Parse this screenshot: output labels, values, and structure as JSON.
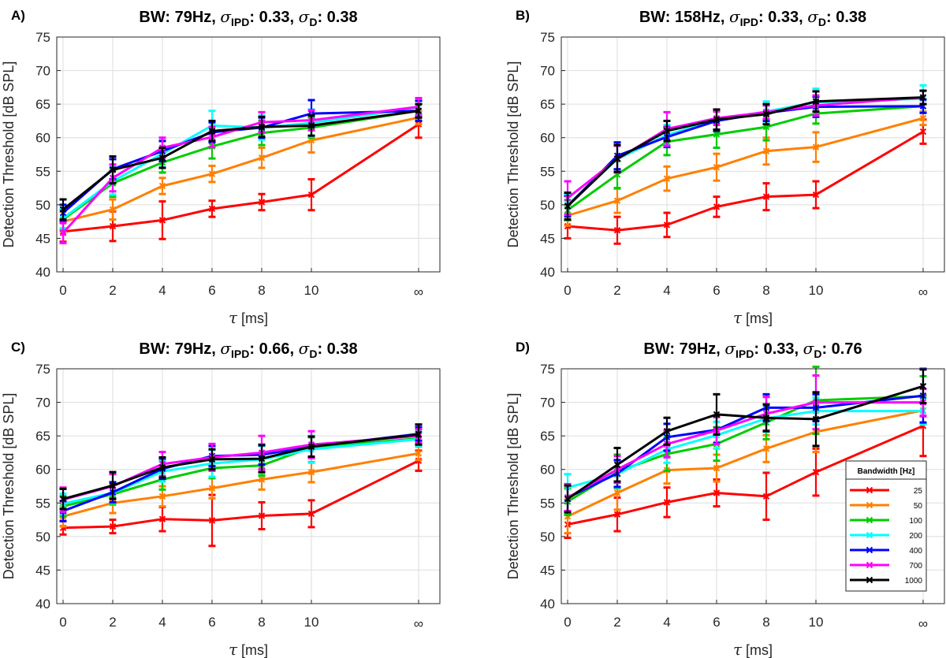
{
  "figure": {
    "legend": {
      "title": "Bandwidth [Hz]",
      "location": "bottom-right of panel D"
    }
  },
  "chart_data": [
    {
      "type": "line",
      "panel": "A)",
      "title": {
        "prefix": "BW: 79Hz, ",
        "sigma1_sub": "IPD",
        "sigma1_val": ": 0.33, ",
        "sigma2_sub": "D",
        "sigma2_val": ": 0.38"
      },
      "xlabel": "[ms]",
      "xlabel_symbol": "τ",
      "ylabel": "Detection Threshold [dB SPL]",
      "ylim": [
        40,
        75
      ],
      "yticks": [
        "40",
        "45",
        "50",
        "55",
        "60",
        "65",
        "70",
        "75"
      ],
      "xtick_labels": [
        "0",
        "2",
        "4",
        "6",
        "8",
        "10",
        "∞"
      ],
      "grid": true,
      "series": [
        {
          "name": "25",
          "color": "#ff0000",
          "values": [
            46.0,
            46.8,
            47.7,
            49.4,
            50.4,
            51.5,
            62.0
          ],
          "errors": [
            1.5,
            2.2,
            2.8,
            1.2,
            1.2,
            2.3,
            2.0
          ]
        },
        {
          "name": "50",
          "color": "#ff8000",
          "values": [
            47.5,
            49.3,
            52.8,
            54.6,
            57.0,
            59.6,
            63.0
          ],
          "errors": [
            1.5,
            1.5,
            1.2,
            1.2,
            1.5,
            1.8,
            1.0
          ]
        },
        {
          "name": "100",
          "color": "#00cc00",
          "values": [
            47.8,
            53.2,
            56.3,
            58.7,
            60.7,
            61.5,
            64.0
          ],
          "errors": [
            1.5,
            2.0,
            1.5,
            1.8,
            1.8,
            1.5,
            1.0
          ]
        },
        {
          "name": "200",
          "color": "#00ffff",
          "values": [
            48.0,
            53.5,
            57.6,
            61.8,
            61.5,
            62.2,
            64.5
          ],
          "errors": [
            1.5,
            2.0,
            2.0,
            2.2,
            1.8,
            2.0,
            1.0
          ]
        },
        {
          "name": "400",
          "color": "#0000ff",
          "values": [
            48.8,
            55.3,
            58.0,
            60.8,
            61.5,
            63.6,
            64.0
          ],
          "errors": [
            1.2,
            1.5,
            1.5,
            1.5,
            1.5,
            2.0,
            1.5
          ]
        },
        {
          "name": "700",
          "color": "#ff00ff",
          "values": [
            45.8,
            54.0,
            58.5,
            60.1,
            62.3,
            62.6,
            64.6
          ],
          "errors": [
            1.5,
            2.0,
            1.5,
            1.5,
            1.5,
            1.5,
            1.3
          ]
        },
        {
          "name": "1000",
          "color": "#000000",
          "values": [
            49.3,
            55.2,
            57.0,
            61.0,
            61.6,
            61.8,
            64.0
          ],
          "errors": [
            1.5,
            2.0,
            1.5,
            1.5,
            1.5,
            1.5,
            1.0
          ]
        }
      ]
    },
    {
      "type": "line",
      "panel": "B)",
      "title": {
        "prefix": "BW: 158Hz, ",
        "sigma1_sub": "IPD",
        "sigma1_val": ": 0.33, ",
        "sigma2_sub": "D",
        "sigma2_val": ": 0.38"
      },
      "xlabel": "[ms]",
      "xlabel_symbol": "τ",
      "ylabel": "Detection Threshold [dB SPL]",
      "ylim": [
        40,
        75
      ],
      "yticks": [
        "40",
        "45",
        "50",
        "55",
        "60",
        "65",
        "70",
        "75"
      ],
      "xtick_labels": [
        "0",
        "2",
        "4",
        "6",
        "8",
        "10",
        "∞"
      ],
      "grid": true,
      "series": [
        {
          "name": "25",
          "color": "#ff0000",
          "values": [
            46.8,
            46.2,
            47.0,
            49.7,
            51.2,
            51.5,
            60.9
          ],
          "errors": [
            1.8,
            2.0,
            1.8,
            1.5,
            2.0,
            2.0,
            1.8
          ]
        },
        {
          "name": "50",
          "color": "#ff8000",
          "values": [
            48.4,
            50.6,
            53.9,
            55.6,
            58.0,
            58.6,
            62.9
          ],
          "errors": [
            1.5,
            1.8,
            1.8,
            2.0,
            2.0,
            2.2,
            1.0
          ]
        },
        {
          "name": "100",
          "color": "#00cc00",
          "values": [
            49.2,
            54.5,
            59.4,
            60.5,
            61.6,
            63.6,
            64.7
          ],
          "errors": [
            1.5,
            2.0,
            2.0,
            2.0,
            2.0,
            1.5,
            1.0
          ]
        },
        {
          "name": "200",
          "color": "#00ffff",
          "values": [
            50.0,
            56.8,
            60.4,
            62.6,
            63.9,
            65.3,
            65.8
          ],
          "errors": [
            1.5,
            2.0,
            1.5,
            1.5,
            1.5,
            2.0,
            2.0
          ]
        },
        {
          "name": "400",
          "color": "#0000ff",
          "values": [
            49.8,
            57.3,
            60.1,
            62.5,
            63.7,
            64.6,
            64.7
          ],
          "errors": [
            1.5,
            2.0,
            1.5,
            1.5,
            1.2,
            1.5,
            1.0
          ]
        },
        {
          "name": "700",
          "color": "#ff00ff",
          "values": [
            51.0,
            56.8,
            61.3,
            62.9,
            63.8,
            64.8,
            66.0
          ],
          "errors": [
            2.5,
            2.0,
            2.5,
            1.0,
            1.0,
            1.5,
            1.0
          ]
        },
        {
          "name": "1000",
          "color": "#000000",
          "values": [
            49.8,
            56.9,
            61.0,
            62.7,
            63.5,
            65.4,
            66.0
          ],
          "errors": [
            2.0,
            2.0,
            1.5,
            1.5,
            1.5,
            1.5,
            1.0
          ]
        }
      ]
    },
    {
      "type": "line",
      "panel": "C)",
      "title": {
        "prefix": "BW: 79Hz, ",
        "sigma1_sub": "IPD",
        "sigma1_val": ": 0.66, ",
        "sigma2_sub": "D",
        "sigma2_val": ": 0.38"
      },
      "xlabel": "[ms]",
      "xlabel_symbol": "τ",
      "ylabel": "Detection Threshold [dB SPL]",
      "ylim": [
        40,
        75
      ],
      "yticks": [
        "40",
        "45",
        "50",
        "55",
        "60",
        "65",
        "70",
        "75"
      ],
      "xtick_labels": [
        "0",
        "2",
        "4",
        "6",
        "8",
        "10",
        "∞"
      ],
      "grid": true,
      "series": [
        {
          "name": "25",
          "color": "#ff0000",
          "values": [
            51.3,
            51.5,
            52.6,
            52.4,
            53.1,
            53.4,
            61.3
          ],
          "errors": [
            1.0,
            1.0,
            1.8,
            3.8,
            2.0,
            2.0,
            1.5
          ]
        },
        {
          "name": "50",
          "color": "#ff8000",
          "values": [
            53.0,
            55.0,
            56.0,
            57.2,
            58.5,
            59.6,
            62.4
          ],
          "errors": [
            1.5,
            1.5,
            1.5,
            1.5,
            1.5,
            1.5,
            1.0
          ]
        },
        {
          "name": "100",
          "color": "#00cc00",
          "values": [
            54.5,
            56.3,
            58.5,
            60.2,
            60.6,
            63.3,
            64.6
          ],
          "errors": [
            1.5,
            1.5,
            1.5,
            1.5,
            1.5,
            1.5,
            1.0
          ]
        },
        {
          "name": "200",
          "color": "#00ffff",
          "values": [
            54.9,
            56.5,
            59.7,
            60.9,
            61.5,
            63.0,
            64.5
          ],
          "errors": [
            1.5,
            1.5,
            1.5,
            2.0,
            2.0,
            2.0,
            1.0
          ]
        },
        {
          "name": "400",
          "color": "#0000ff",
          "values": [
            53.8,
            56.6,
            60.1,
            62.0,
            62.2,
            63.4,
            65.3
          ],
          "errors": [
            1.5,
            1.5,
            1.5,
            1.5,
            1.5,
            1.5,
            1.0
          ]
        },
        {
          "name": "700",
          "color": "#ff00ff",
          "values": [
            55.5,
            57.5,
            60.8,
            61.8,
            62.5,
            63.7,
            65.0
          ],
          "errors": [
            1.8,
            1.8,
            1.8,
            2.0,
            2.5,
            2.0,
            1.0
          ]
        },
        {
          "name": "1000",
          "color": "#000000",
          "values": [
            55.6,
            57.6,
            60.3,
            61.5,
            61.6,
            63.4,
            65.2
          ],
          "errors": [
            1.5,
            2.0,
            1.5,
            1.5,
            2.0,
            1.5,
            1.5
          ]
        }
      ]
    },
    {
      "type": "line",
      "panel": "D)",
      "title": {
        "prefix": "BW: 79Hz, ",
        "sigma1_sub": "IPD",
        "sigma1_val": ": 0.33, ",
        "sigma2_sub": "D",
        "sigma2_val": ": 0.76"
      },
      "xlabel": "[ms]",
      "xlabel_symbol": "τ",
      "ylabel": "Detection Threshold [dB SPL]",
      "ylim": [
        40,
        75
      ],
      "yticks": [
        "40",
        "45",
        "50",
        "55",
        "60",
        "65",
        "70",
        "75"
      ],
      "xtick_labels": [
        "0",
        "2",
        "4",
        "6",
        "8",
        "10",
        "∞"
      ],
      "grid": true,
      "series": [
        {
          "name": "25",
          "color": "#ff0000",
          "values": [
            51.8,
            53.3,
            55.1,
            56.5,
            56.0,
            59.6,
            66.5
          ],
          "errors": [
            2.0,
            2.5,
            2.2,
            2.0,
            3.5,
            3.5,
            4.5
          ]
        },
        {
          "name": "50",
          "color": "#ff8000",
          "values": [
            53.0,
            56.5,
            59.9,
            60.2,
            63.1,
            65.6,
            68.8
          ],
          "errors": [
            2.5,
            2.5,
            2.0,
            2.0,
            2.0,
            3.0,
            2.0
          ]
        },
        {
          "name": "100",
          "color": "#00cc00",
          "values": [
            55.2,
            59.7,
            62.3,
            63.8,
            67.0,
            70.3,
            70.9
          ],
          "errors": [
            2.0,
            2.5,
            2.5,
            2.5,
            2.5,
            5.0,
            3.0
          ]
        },
        {
          "name": "200",
          "color": "#00ffff",
          "values": [
            57.3,
            59.3,
            63.0,
            65.1,
            67.6,
            68.7,
            68.7
          ],
          "errors": [
            2.0,
            2.0,
            2.0,
            2.0,
            2.0,
            2.0,
            2.0
          ]
        },
        {
          "name": "400",
          "color": "#0000ff",
          "values": [
            55.8,
            59.4,
            64.8,
            65.9,
            69.2,
            69.2,
            71.0
          ],
          "errors": [
            2.0,
            2.0,
            2.0,
            2.0,
            2.0,
            2.0,
            4.0
          ]
        },
        {
          "name": "700",
          "color": "#ff00ff",
          "values": [
            55.8,
            60.0,
            63.8,
            65.8,
            68.3,
            70.0,
            70.0
          ],
          "errors": [
            2.0,
            2.0,
            2.0,
            2.0,
            2.5,
            4.0,
            2.0
          ]
        },
        {
          "name": "1000",
          "color": "#000000",
          "values": [
            55.6,
            60.7,
            65.7,
            68.2,
            67.7,
            67.5,
            72.4
          ],
          "errors": [
            2.0,
            2.5,
            2.0,
            3.0,
            2.0,
            4.0,
            2.5
          ]
        }
      ]
    }
  ]
}
